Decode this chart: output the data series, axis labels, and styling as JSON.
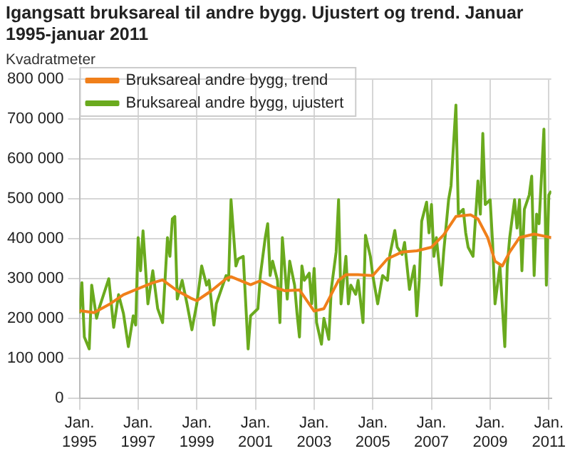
{
  "chart_data": {
    "type": "line",
    "title": "Igangsatt bruksareal til andre bygg. Ujustert og trend. Januar 1995-januar 2011",
    "ylabel": "Kvadratmeter",
    "xlim": [
      "1995-01",
      "2011-02"
    ],
    "xticks": [
      {
        "value": "1995-01",
        "label": "Jan. 1995"
      },
      {
        "value": "1997-01",
        "label": "Jan. 1997"
      },
      {
        "value": "1999-01",
        "label": "Jan. 1999"
      },
      {
        "value": "2001-01",
        "label": "Jan. 2001"
      },
      {
        "value": "2003-01",
        "label": "Jan. 2003"
      },
      {
        "value": "2005-01",
        "label": "Jan. 2005"
      },
      {
        "value": "2007-01",
        "label": "Jan. 2007"
      },
      {
        "value": "2009-01",
        "label": "Jan. 2009"
      },
      {
        "value": "2011-01",
        "label": "Jan. 2011"
      }
    ],
    "ylim": [
      0,
      800000
    ],
    "yticks": [
      {
        "value": 0,
        "label": "0"
      },
      {
        "value": 100000,
        "label": "100 000"
      },
      {
        "value": 200000,
        "label": "200 000"
      },
      {
        "value": 300000,
        "label": "300 000"
      },
      {
        "value": 400000,
        "label": "400 000"
      },
      {
        "value": 500000,
        "label": "500 000"
      },
      {
        "value": 600000,
        "label": "600 000"
      },
      {
        "value": 700000,
        "label": "700 000"
      },
      {
        "value": 800000,
        "label": "800 000"
      }
    ],
    "grid": true,
    "legend": "top left",
    "marker": "none",
    "series": [
      {
        "name": "Bruksareal andre bygg, trend",
        "color": "#f07f1a",
        "x": [
          "1995-01",
          "1995-07",
          "1996-01",
          "1996-07",
          "1997-01",
          "1997-07",
          "1997-11",
          "1998-05",
          "1998-11",
          "1999-01",
          "1999-07",
          "2000-01",
          "2000-03",
          "2000-11",
          "2001-03",
          "2001-08",
          "2002-01",
          "2002-07",
          "2003-01",
          "2003-05",
          "2003-11",
          "2004-02",
          "2004-07",
          "2005-01",
          "2005-07",
          "2006-01",
          "2006-07",
          "2007-01",
          "2007-06",
          "2007-11",
          "2008-05",
          "2008-08",
          "2008-12",
          "2009-03",
          "2009-06",
          "2009-09",
          "2010-01",
          "2010-07",
          "2011-02"
        ],
        "values": [
          220000,
          215000,
          235000,
          260000,
          275000,
          290000,
          297000,
          270000,
          250000,
          245000,
          270000,
          300000,
          305000,
          285000,
          295000,
          280000,
          270000,
          272000,
          219000,
          225000,
          296000,
          310000,
          310000,
          308000,
          350000,
          367000,
          370000,
          379000,
          410000,
          456000,
          460000,
          450000,
          403000,
          344000,
          332000,
          367000,
          403000,
          412000,
          403000
        ]
      },
      {
        "name": "Bruksareal andre bygg, ujustert",
        "color": "#6aaa1e",
        "x": [
          "1995-01",
          "1995-02",
          "1995-03",
          "1995-05",
          "1995-06",
          "1995-08",
          "1995-09",
          "1996-01",
          "1996-03",
          "1996-05",
          "1996-07",
          "1996-09",
          "1996-11",
          "1996-12",
          "1997-01",
          "1997-02",
          "1997-03",
          "1997-05",
          "1997-07",
          "1997-09",
          "1997-11",
          "1997-12",
          "1998-01",
          "1998-02",
          "1998-03",
          "1998-04",
          "1998-05",
          "1998-07",
          "1998-09",
          "1998-11",
          "1999-01",
          "1999-03",
          "1999-05",
          "1999-06",
          "1999-08",
          "1999-09",
          "1999-11",
          "2000-01",
          "2000-02",
          "2000-03",
          "2000-05",
          "2000-06",
          "2000-08",
          "2000-10",
          "2000-11",
          "2001-02",
          "2001-03",
          "2001-05",
          "2001-06",
          "2001-07",
          "2001-08",
          "2001-10",
          "2001-11",
          "2001-12",
          "2002-02",
          "2002-03",
          "2002-05",
          "2002-06",
          "2002-07",
          "2002-08",
          "2002-09",
          "2002-11",
          "2002-12",
          "2003-01",
          "2003-02",
          "2003-04",
          "2003-05",
          "2003-07",
          "2003-08",
          "2003-10",
          "2003-11",
          "2003-12",
          "2004-02",
          "2004-03",
          "2004-04",
          "2004-06",
          "2004-07",
          "2004-09",
          "2004-10",
          "2004-12",
          "2005-01",
          "2005-03",
          "2005-05",
          "2005-07",
          "2005-08",
          "2005-10",
          "2005-11",
          "2006-01",
          "2006-02",
          "2006-04",
          "2006-06",
          "2006-07",
          "2006-08",
          "2006-09",
          "2006-11",
          "2006-12",
          "2007-01",
          "2007-02",
          "2007-03",
          "2007-05",
          "2007-06",
          "2007-08",
          "2007-09",
          "2007-11",
          "2007-12",
          "2008-02",
          "2008-03",
          "2008-04",
          "2008-06",
          "2008-08",
          "2008-09",
          "2008-10",
          "2008-11",
          "2009-01",
          "2009-02",
          "2009-03",
          "2009-05",
          "2009-07",
          "2009-08",
          "2009-09",
          "2009-11",
          "2009-12",
          "2010-01",
          "2010-02",
          "2010-03",
          "2010-05",
          "2010-06",
          "2010-07",
          "2010-08",
          "2010-09",
          "2010-11",
          "2010-12",
          "2011-01",
          "2011-02"
        ],
        "values": [
          213000,
          290000,
          154000,
          124000,
          284000,
          201000,
          225000,
          300000,
          178000,
          260000,
          213000,
          130000,
          207000,
          184000,
          403000,
          320000,
          420000,
          237000,
          320000,
          225000,
          190000,
          296000,
          403000,
          356000,
          450000,
          456000,
          249000,
          296000,
          237000,
          172000,
          237000,
          332000,
          284000,
          296000,
          184000,
          237000,
          273000,
          308000,
          296000,
          498000,
          332000,
          350000,
          356000,
          124000,
          207000,
          225000,
          308000,
          403000,
          438000,
          308000,
          344000,
          296000,
          190000,
          403000,
          249000,
          344000,
          284000,
          213000,
          154000,
          332000,
          296000,
          314000,
          237000,
          326000,
          190000,
          136000,
          201000,
          148000,
          273000,
          367000,
          498000,
          237000,
          356000,
          237000,
          284000,
          261000,
          296000,
          190000,
          409000,
          356000,
          308000,
          237000,
          308000,
          296000,
          361000,
          421000,
          379000,
          361000,
          391000,
          273000,
          332000,
          207000,
          296000,
          444000,
          492000,
          415000,
          486000,
          356000,
          403000,
          284000,
          367000,
          498000,
          533000,
          735000,
          462000,
          474000,
          415000,
          379000,
          356000,
          545000,
          462000,
          664000,
          486000,
          498000,
          391000,
          237000,
          332000,
          130000,
          332000,
          403000,
          498000,
          427000,
          498000,
          320000,
          474000,
          510000,
          557000,
          308000,
          462000,
          438000,
          675000,
          284000,
          510000,
          520000
        ]
      }
    ]
  }
}
